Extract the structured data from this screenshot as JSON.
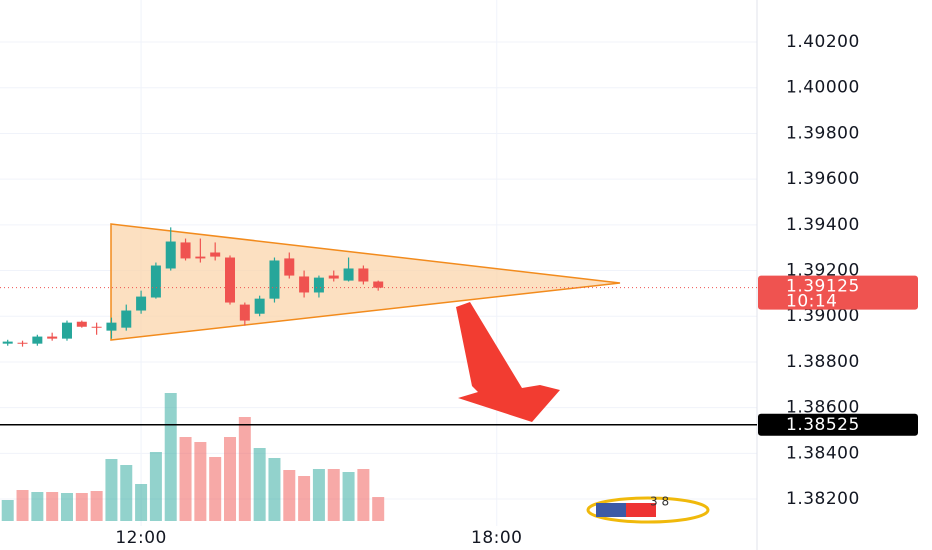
{
  "chart_data": {
    "type": "candlestick",
    "x": [
      9.75,
      10,
      10.25,
      10.5,
      10.75,
      11,
      11.25,
      11.5,
      11.75,
      12,
      12.25,
      12.5,
      12.75,
      13,
      13.25,
      13.5,
      13.75,
      14,
      14.25,
      14.5,
      14.75,
      15,
      15.25,
      15.5,
      15.75,
      16
    ],
    "open": [
      1.3888,
      1.38884,
      1.3888,
      1.38911,
      1.38902,
      1.38976,
      1.38954,
      1.38937,
      1.3895,
      1.39025,
      1.39082,
      1.39209,
      1.39323,
      1.39261,
      1.39279,
      1.39257,
      1.39051,
      1.39011,
      1.39077,
      1.39253,
      1.39174,
      1.39104,
      1.39178,
      1.39156,
      1.39209,
      1.39152
    ],
    "high": [
      1.38897,
      1.38893,
      1.38919,
      1.38928,
      1.38981,
      1.38981,
      1.38972,
      1.38994,
      1.39051,
      1.39112,
      1.39235,
      1.39389,
      1.3934,
      1.3934,
      1.39323,
      1.39266,
      1.3906,
      1.3909,
      1.39257,
      1.39279,
      1.392,
      1.39178,
      1.392,
      1.39257,
      1.39222,
      1.39156
    ],
    "low": [
      1.38871,
      1.38867,
      1.38871,
      1.38893,
      1.38893,
      1.3895,
      1.38919,
      1.38902,
      1.38937,
      1.39011,
      1.39077,
      1.392,
      1.39244,
      1.39235,
      1.39244,
      1.39051,
      1.38959,
      1.39,
      1.3906,
      1.39165,
      1.39082,
      1.39082,
      1.39152,
      1.39152,
      1.39139,
      1.39112
    ],
    "close": [
      1.38889,
      1.3888,
      1.38911,
      1.38902,
      1.38972,
      1.38954,
      1.3895,
      1.38972,
      1.39025,
      1.39086,
      1.39222,
      1.39327,
      1.39253,
      1.39253,
      1.39261,
      1.3906,
      1.38981,
      1.39077,
      1.39244,
      1.39178,
      1.39104,
      1.39169,
      1.39165,
      1.39209,
      1.39152,
      1.39125
    ],
    "volume": [
      21,
      31,
      29,
      29,
      28,
      28,
      30,
      62,
      56,
      37,
      69,
      128,
      84,
      79,
      64,
      84,
      104,
      73,
      63,
      51,
      45,
      52,
      52,
      49,
      52,
      24
    ],
    "up_color": "#26a69a",
    "down_color": "#ef5350",
    "xlim": [
      9.62,
      22.39
    ],
    "xticks": [
      {
        "value": 12,
        "label": "12:00"
      },
      {
        "value": 18,
        "label": "18:00"
      }
    ],
    "ylim": [
      1.38082,
      1.40384
    ],
    "yticks": [
      {
        "value": 1.382,
        "label": "1.38200"
      },
      {
        "value": 1.384,
        "label": "1.38400"
      },
      {
        "value": 1.386,
        "label": "1.38600"
      },
      {
        "value": 1.388,
        "label": "1.38800"
      },
      {
        "value": 1.39,
        "label": "1.39000"
      },
      {
        "value": 1.392,
        "label": "1.39200"
      },
      {
        "value": 1.394,
        "label": "1.39400"
      },
      {
        "value": 1.396,
        "label": "1.39600"
      },
      {
        "value": 1.398,
        "label": "1.39800"
      },
      {
        "value": 1.4,
        "label": "1.40000"
      },
      {
        "value": 1.402,
        "label": "1.40200"
      }
    ],
    "grid": true,
    "last_price": 1.39125,
    "countdown": "10:14",
    "level": 1.38525,
    "badge_text": "3 8"
  }
}
